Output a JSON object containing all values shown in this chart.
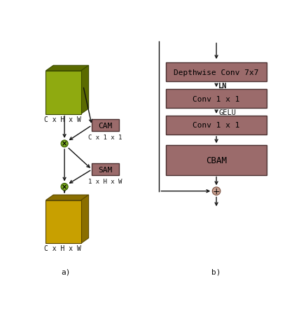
{
  "fig_width": 4.3,
  "fig_height": 4.52,
  "dpi": 100,
  "bg_color": "#ffffff",
  "block_color": "#9b6b6b",
  "block_edge_color": "#4a3030",
  "cam_sam_color": "#9b6b6b",
  "cam_sam_edge": "#4a3030",
  "olive_face": "#8faa10",
  "olive_side": "#5a6a00",
  "olive_edge": "#3a4a00",
  "gold_face": "#c8a000",
  "gold_side": "#8a6e00",
  "gold_edge": "#5a4800",
  "add_circle_color": "#c8a090",
  "add_circle_edge": "#7a5040",
  "mul_circle_color": "#7aaa20",
  "mul_circle_edge": "#3a5a00",
  "arrow_color": "#111111",
  "text_color": "#111111",
  "label_a": "a)",
  "label_b": "b)",
  "left_label_top": "C x H x W",
  "left_label_bot": "C x H x W",
  "cam_label": "CAM",
  "cam_sub": "C x 1 x 1",
  "sam_label": "SAM",
  "sam_sub": "1 x H x W",
  "blocks_b": [
    "Depthwise Conv 7x7",
    "Conv 1 x 1",
    "Conv 1 x 1",
    "CBAM"
  ],
  "ln_label": "LN",
  "gelu_label": "GELU",
  "font_size_block": 8,
  "font_size_label": 7,
  "font_size_sub": 6.5,
  "font_size_ab": 8,
  "font_size_act": 7.5
}
